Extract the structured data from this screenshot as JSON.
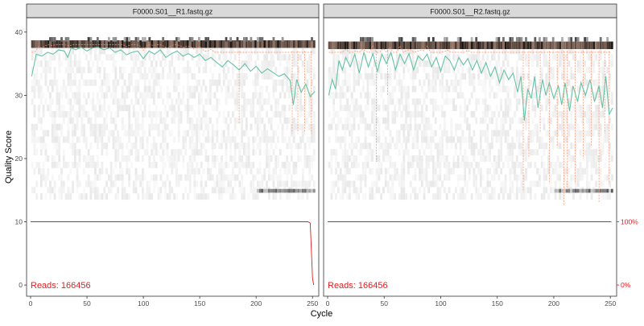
{
  "chart_data": {
    "type": "line",
    "xlabel": "Cycle",
    "ylabel": "Quality Score",
    "xlim": [
      0,
      252
    ],
    "ylim": [
      -0.5,
      41
    ],
    "x_ticks": [
      0,
      50,
      100,
      150,
      200,
      250
    ],
    "y_ticks": [
      0,
      10,
      20,
      30,
      40
    ],
    "grid": false,
    "secondary_axis_labels": [
      "100%",
      "0%"
    ],
    "colors": {
      "mean": "#66c2a5",
      "quartile": "#fc8d62",
      "reads_line": "#e41a1c",
      "reads_text": "#e41a1c",
      "strip": "#d9d9d9",
      "heat_dark": "#1a0f0a"
    },
    "panels": [
      {
        "title": "F0000.S01__R1.fastq.gz",
        "reads_label": "Reads:  166456",
        "mean_quality": [
          [
            1,
            33
          ],
          [
            5,
            36.5
          ],
          [
            10,
            36.2
          ],
          [
            15,
            36.8
          ],
          [
            20,
            36.5
          ],
          [
            25,
            37.2
          ],
          [
            30,
            37
          ],
          [
            33,
            36
          ],
          [
            36,
            37.5
          ],
          [
            40,
            37.2
          ],
          [
            45,
            37.6
          ],
          [
            50,
            37
          ],
          [
            55,
            37.5
          ],
          [
            60,
            37.6
          ],
          [
            65,
            37.2
          ],
          [
            70,
            37.5
          ],
          [
            75,
            36.8
          ],
          [
            80,
            37.2
          ],
          [
            85,
            36.4
          ],
          [
            90,
            36.8
          ],
          [
            95,
            37
          ],
          [
            100,
            35.8
          ],
          [
            105,
            37
          ],
          [
            110,
            36.5
          ],
          [
            115,
            37.2
          ],
          [
            120,
            36
          ],
          [
            125,
            36.6
          ],
          [
            130,
            37
          ],
          [
            135,
            36.2
          ],
          [
            140,
            36.6
          ],
          [
            145,
            36
          ],
          [
            150,
            36.5
          ],
          [
            155,
            35.5
          ],
          [
            160,
            36
          ],
          [
            165,
            35.2
          ],
          [
            170,
            34.5
          ],
          [
            175,
            35.5
          ],
          [
            180,
            34.8
          ],
          [
            185,
            34
          ],
          [
            190,
            35
          ],
          [
            195,
            33.8
          ],
          [
            200,
            34.6
          ],
          [
            205,
            33.5
          ],
          [
            210,
            34.2
          ],
          [
            215,
            33.6
          ],
          [
            220,
            33
          ],
          [
            225,
            33.4
          ],
          [
            230,
            32.4
          ],
          [
            233,
            28.5
          ],
          [
            236,
            32.5
          ],
          [
            240,
            30.5
          ],
          [
            244,
            31.8
          ],
          [
            248,
            29.8
          ],
          [
            252,
            30.6
          ]
        ],
        "quartile_dips": [
          [
            185,
            25.5
          ],
          [
            232,
            24
          ],
          [
            237,
            24
          ],
          [
            243,
            24
          ],
          [
            249,
            24
          ]
        ],
        "reads_pct": [
          [
            0,
            100
          ],
          [
            246,
            100
          ],
          [
            248,
            98
          ],
          [
            250,
            12
          ],
          [
            251,
            0
          ]
        ]
      },
      {
        "title": "F0000.S01__R2.fastq.gz",
        "reads_label": "Reads:  166456",
        "mean_quality": [
          [
            1,
            30
          ],
          [
            4,
            32.5
          ],
          [
            7,
            31
          ],
          [
            10,
            35.5
          ],
          [
            13,
            34
          ],
          [
            16,
            36
          ],
          [
            20,
            34.5
          ],
          [
            24,
            36.5
          ],
          [
            28,
            33.5
          ],
          [
            32,
            36.8
          ],
          [
            36,
            34.5
          ],
          [
            40,
            36.6
          ],
          [
            44,
            33.8
          ],
          [
            48,
            36.5
          ],
          [
            52,
            35
          ],
          [
            56,
            36.8
          ],
          [
            60,
            34
          ],
          [
            64,
            36.5
          ],
          [
            68,
            35
          ],
          [
            72,
            36.6
          ],
          [
            76,
            34
          ],
          [
            80,
            36.2
          ],
          [
            84,
            35.5
          ],
          [
            88,
            36.5
          ],
          [
            92,
            34.5
          ],
          [
            96,
            36
          ],
          [
            100,
            33.8
          ],
          [
            104,
            36.2
          ],
          [
            108,
            35.5
          ],
          [
            112,
            34
          ],
          [
            116,
            36
          ],
          [
            120,
            34.8
          ],
          [
            124,
            35.8
          ],
          [
            128,
            34
          ],
          [
            132,
            35.5
          ],
          [
            136,
            33.5
          ],
          [
            140,
            35.2
          ],
          [
            144,
            33
          ],
          [
            148,
            34.5
          ],
          [
            152,
            32
          ],
          [
            156,
            34
          ],
          [
            160,
            32.5
          ],
          [
            164,
            33.5
          ],
          [
            168,
            30.5
          ],
          [
            171,
            33
          ],
          [
            174,
            26
          ],
          [
            177,
            31
          ],
          [
            180,
            29.5
          ],
          [
            183,
            33
          ],
          [
            186,
            28
          ],
          [
            190,
            32.5
          ],
          [
            193,
            30
          ],
          [
            196,
            32
          ],
          [
            200,
            29.5
          ],
          [
            204,
            31.5
          ],
          [
            207,
            28.5
          ],
          [
            210,
            32
          ],
          [
            214,
            27.5
          ],
          [
            217,
            31.5
          ],
          [
            221,
            29
          ],
          [
            224,
            32
          ],
          [
            228,
            30
          ],
          [
            232,
            32.5
          ],
          [
            236,
            29
          ],
          [
            240,
            31.5
          ],
          [
            243,
            28
          ],
          [
            246,
            33
          ],
          [
            249,
            27
          ],
          [
            252,
            28
          ]
        ],
        "quartile_dips": [
          [
            43,
            19.5
          ],
          [
            53,
            30
          ],
          [
            173,
            15
          ],
          [
            178,
            20
          ],
          [
            188,
            24
          ],
          [
            196,
            16
          ],
          [
            203,
            22
          ],
          [
            209,
            12.5
          ],
          [
            212,
            15
          ],
          [
            219,
            16
          ],
          [
            226,
            20
          ],
          [
            233,
            22
          ],
          [
            240,
            13
          ],
          [
            245,
            24
          ],
          [
            249,
            16
          ]
        ],
        "reads_pct": [
          [
            0,
            100
          ],
          [
            250,
            100
          ],
          [
            251,
            99.5
          ]
        ]
      }
    ]
  }
}
